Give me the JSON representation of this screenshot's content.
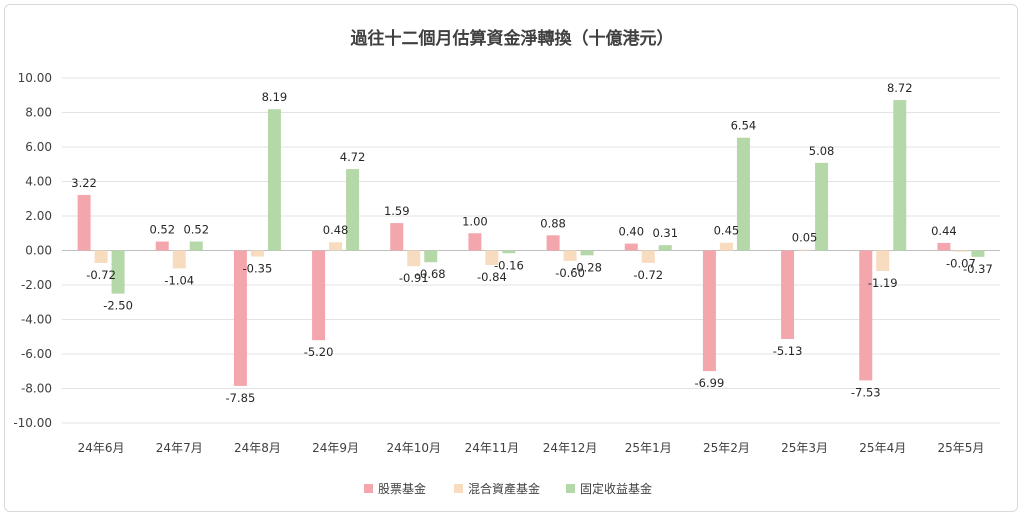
{
  "chart_data": {
    "type": "bar",
    "title": "過往十二個月估算資金淨轉換（十億港元）",
    "categories": [
      "24年6月",
      "24年7月",
      "24年8月",
      "24年9月",
      "24年10月",
      "24年11月",
      "24年12月",
      "25年1月",
      "25年2月",
      "25年3月",
      "25年4月",
      "25年5月"
    ],
    "series": [
      {
        "name": "股票基金",
        "color": "#f4a6ad",
        "values": [
          3.22,
          0.52,
          -7.85,
          -5.2,
          1.59,
          1.0,
          0.88,
          0.4,
          -6.99,
          -5.13,
          -7.53,
          0.44
        ],
        "labels": [
          "3.22",
          "0.52",
          "-7.85",
          "-5.20",
          "1.59",
          "1.00",
          "0.88",
          "0.40",
          "-6.99",
          "-5.13",
          "-7.53",
          "0.44"
        ]
      },
      {
        "name": "混合資產基金",
        "color": "#f8dcbf",
        "values": [
          -0.72,
          -1.04,
          -0.35,
          0.48,
          -0.91,
          -0.84,
          -0.6,
          -0.72,
          0.45,
          0.05,
          -1.19,
          -0.07
        ],
        "labels": [
          "-0.72",
          "-1.04",
          "-0.35",
          "0.48",
          "-0.91",
          "-0.84",
          "-0.60",
          "-0.72",
          "0.45",
          "0.05",
          "-1.19",
          "-0.07"
        ]
      },
      {
        "name": "固定收益基金",
        "color": "#b5d8a8",
        "values": [
          -2.5,
          0.52,
          8.19,
          4.72,
          -0.68,
          -0.16,
          -0.28,
          0.31,
          6.54,
          5.08,
          8.72,
          -0.37
        ],
        "labels": [
          "-2.50",
          "0.52",
          "8.19",
          "4.72",
          "-0.68",
          "-0.16",
          "-0.28",
          "0.31",
          "6.54",
          "5.08",
          "8.72",
          "-0.37"
        ]
      }
    ],
    "yticks": [
      "10.00",
      "8.00",
      "6.00",
      "4.00",
      "2.00",
      "0.00",
      "-2.00",
      "-4.00",
      "-6.00",
      "-8.00",
      "-10.00"
    ],
    "ylim": [
      -10,
      10
    ],
    "grid": true,
    "legend": "bottom"
  }
}
